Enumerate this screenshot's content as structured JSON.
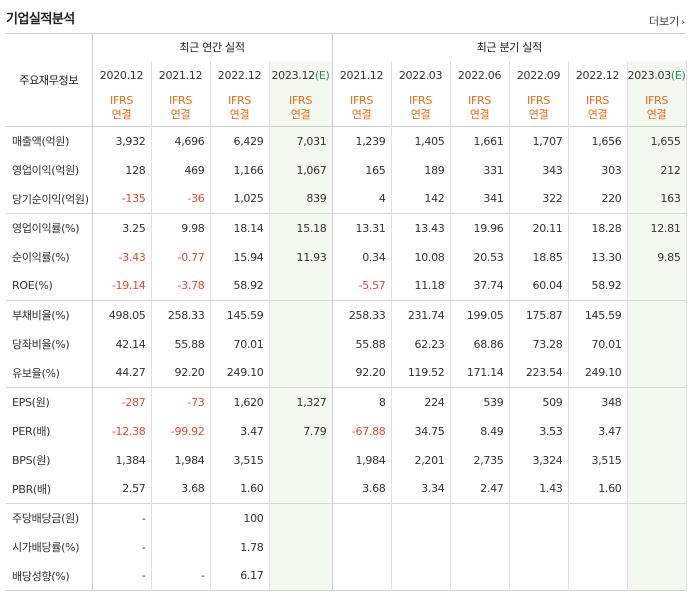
{
  "title": "기업실적분석",
  "more": "더보기",
  "header": {
    "row_label": "주요재무정보",
    "annual_label": "최근 연간 실적",
    "quarter_label": "최근 분기 실적",
    "annual_dates": [
      "2020.12",
      "2021.12",
      "2022.12",
      "2023.12"
    ],
    "estimate_mark": "(E)",
    "quarter_dates": [
      "2021.12",
      "2022.03",
      "2022.06",
      "2022.09",
      "2022.12",
      "2023.03"
    ],
    "ifrs_top": "IFRS",
    "ifrs_bottom": "연결"
  },
  "rows": [
    {
      "label": "매출액(억원)",
      "cells": [
        "3,932",
        "4,696",
        "6,429",
        "7,031",
        "1,239",
        "1,405",
        "1,661",
        "1,707",
        "1,656",
        "1,655"
      ],
      "neg": []
    },
    {
      "label": "영업이익(억원)",
      "cells": [
        "128",
        "469",
        "1,166",
        "1,067",
        "165",
        "189",
        "331",
        "343",
        "303",
        "212"
      ],
      "neg": []
    },
    {
      "label": "당기순이익(억원)",
      "cells": [
        "-135",
        "-36",
        "1,025",
        "839",
        "4",
        "142",
        "341",
        "322",
        "220",
        "163"
      ],
      "neg": [
        0,
        1
      ]
    },
    {
      "label": "영업이익률(%)",
      "cells": [
        "3.25",
        "9.98",
        "18.14",
        "15.18",
        "13.31",
        "13.43",
        "19.96",
        "20.11",
        "18.28",
        "12.81"
      ],
      "neg": []
    },
    {
      "label": "순이익률(%)",
      "cells": [
        "-3.43",
        "-0.77",
        "15.94",
        "11.93",
        "0.34",
        "10.08",
        "20.53",
        "18.85",
        "13.30",
        "9.85"
      ],
      "neg": [
        0,
        1
      ]
    },
    {
      "label": "ROE(%)",
      "cells": [
        "-19.14",
        "-3.78",
        "58.92",
        "",
        "-5.57",
        "11.18",
        "37.74",
        "60.04",
        "58.92",
        ""
      ],
      "neg": [
        0,
        1,
        4
      ]
    },
    {
      "label": "부채비율(%)",
      "cells": [
        "498.05",
        "258.33",
        "145.59",
        "",
        "258.33",
        "231.74",
        "199.05",
        "175.87",
        "145.59",
        ""
      ],
      "neg": []
    },
    {
      "label": "당좌비율(%)",
      "cells": [
        "42.14",
        "55.88",
        "70.01",
        "",
        "55.88",
        "62.23",
        "68.86",
        "73.28",
        "70.01",
        ""
      ],
      "neg": []
    },
    {
      "label": "유보율(%)",
      "cells": [
        "44.27",
        "92.20",
        "249.10",
        "",
        "92.20",
        "119.52",
        "171.14",
        "223.54",
        "249.10",
        ""
      ],
      "neg": []
    },
    {
      "label": "EPS(원)",
      "cells": [
        "-287",
        "-73",
        "1,620",
        "1,327",
        "8",
        "224",
        "539",
        "509",
        "348",
        ""
      ],
      "neg": [
        0,
        1
      ]
    },
    {
      "label": "PER(배)",
      "cells": [
        "-12.38",
        "-99.92",
        "3.47",
        "7.79",
        "-67.88",
        "34.75",
        "8.49",
        "3.53",
        "3.47",
        ""
      ],
      "neg": [
        0,
        1,
        4
      ]
    },
    {
      "label": "BPS(원)",
      "cells": [
        "1,384",
        "1,984",
        "3,515",
        "",
        "1,984",
        "2,201",
        "2,735",
        "3,324",
        "3,515",
        ""
      ],
      "neg": []
    },
    {
      "label": "PBR(배)",
      "cells": [
        "2.57",
        "3.68",
        "1.60",
        "",
        "3.68",
        "3.34",
        "2.47",
        "1.43",
        "1.60",
        ""
      ],
      "neg": []
    },
    {
      "label": "주당배당금(원)",
      "cells": [
        "-",
        "",
        "100",
        "",
        "",
        "",
        "",
        "",
        "",
        ""
      ],
      "neg": []
    },
    {
      "label": "시가배당률(%)",
      "cells": [
        "-",
        "",
        "1.78",
        "",
        "",
        "",
        "",
        "",
        "",
        ""
      ],
      "neg": []
    },
    {
      "label": "배당성향(%)",
      "cells": [
        "-",
        "-",
        "6.17",
        "",
        "",
        "",
        "",
        "",
        "",
        ""
      ],
      "neg": []
    }
  ],
  "colors": {
    "negative": "#e04a3b",
    "ifrs": "#e86a1a",
    "estimate_bg": "#f3f9f1",
    "estimate_mark": "#2e8b57"
  }
}
